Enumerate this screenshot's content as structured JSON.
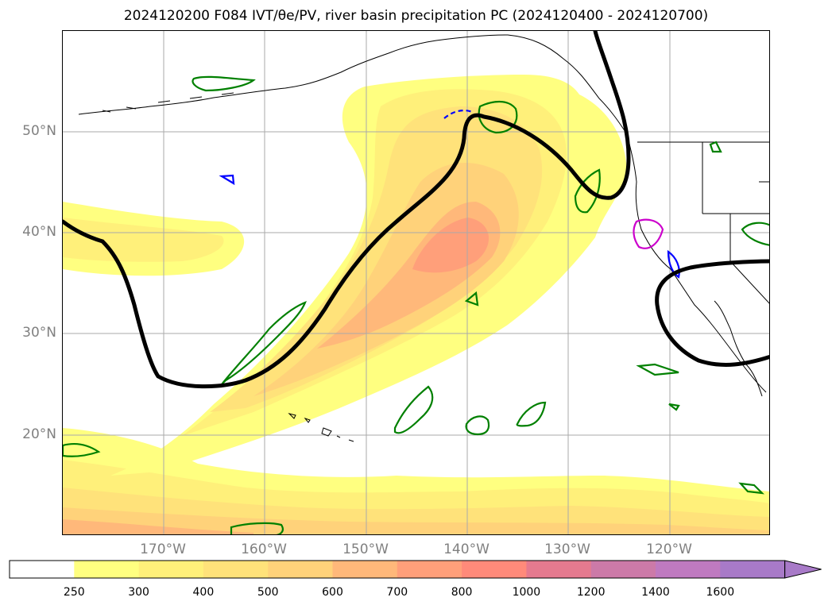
{
  "title": "2024120200 F084 IVT/θe/PV, river basin precipitation PC (2024120400 - 2024120700)",
  "latitude_labels": [
    "50°N",
    "40°N",
    "30°N",
    "20°N"
  ],
  "longitude_labels": [
    "170°W",
    "160°W",
    "150°W",
    "140°W",
    "130°W",
    "120°W"
  ],
  "colorbar": {
    "tick_labels": [
      "250",
      "300",
      "400",
      "500",
      "600",
      "700",
      "800",
      "1000",
      "1200",
      "1400",
      "1600"
    ],
    "colors": [
      "#ffffff",
      "#ffff80",
      "#fff07a",
      "#ffe27a",
      "#ffd27a",
      "#ffb87a",
      "#ff9f7a",
      "#ff8a7a",
      "#e57a8f",
      "#cc7aa8",
      "#bf7ac0",
      "#a87ac8"
    ],
    "extend": "max"
  },
  "layers": {
    "ivt_shading": "IVT",
    "theta_e_contour_color": "#000000",
    "pv_contour_colors": [
      "#008000",
      "#0000ff",
      "#cc00cc"
    ]
  }
}
